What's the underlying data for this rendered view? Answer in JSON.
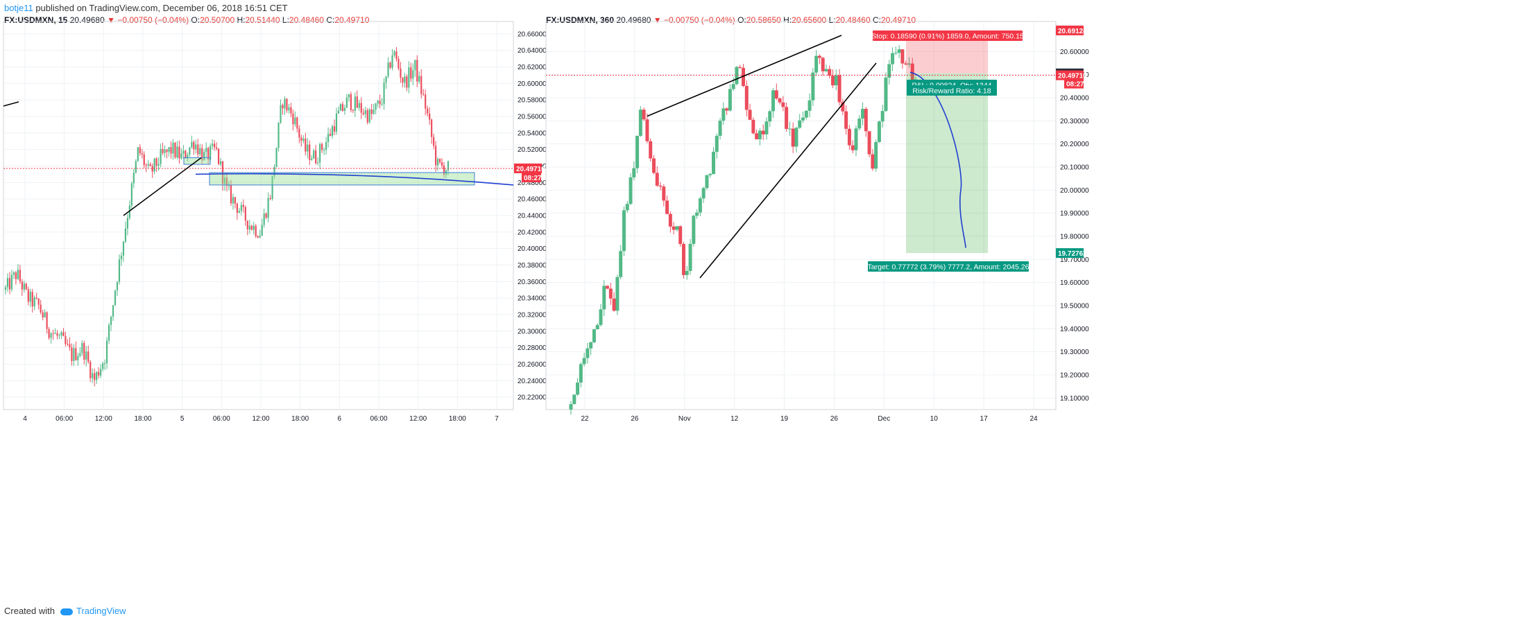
{
  "header": {
    "user": "botje11",
    "published": "published on TradingView.com, December 06, 2018 16:51 CET"
  },
  "footer": {
    "created_with": "Created with",
    "brand": "TradingView"
  },
  "colors": {
    "up": "#53b987",
    "down": "#eb4d5c",
    "grid": "#eef1f4",
    "accent_red": "#f23645",
    "accent_green": "#089981",
    "blue": "#1f3fd1",
    "link": "#2196f3"
  },
  "chart_data": [
    {
      "type": "candlestick",
      "symbol": "FX:USDMXN, 15",
      "ohlc": {
        "last": "20.49680",
        "change": "▼ −0.00750 (−0.04%)",
        "open_label": "O:",
        "open": "20.50700",
        "high_label": "H:",
        "high": "20.51440",
        "low_label": "L:",
        "low": "20.48460",
        "close_label": "C:",
        "close": "20.49710"
      },
      "ylim": [
        20.205,
        20.675
      ],
      "y_ticks": [
        "20.22000",
        "20.24000",
        "20.26000",
        "20.28000",
        "20.30000",
        "20.32000",
        "20.34000",
        "20.36000",
        "20.38000",
        "20.40000",
        "20.42000",
        "20.44000",
        "20.46000",
        "20.48000",
        "20.50000",
        "20.52000",
        "20.54000",
        "20.56000",
        "20.58000",
        "20.60000",
        "20.62000",
        "20.64000",
        "20.66000"
      ],
      "x_ticks": [
        "4",
        "06:00",
        "12:00",
        "18:00",
        "5",
        "06:00",
        "12:00",
        "18:00",
        "6",
        "06:00",
        "12:00",
        "18:00",
        "7"
      ],
      "last_price_label": "20.49710",
      "countdown": "08:27",
      "price_path": [
        20.35,
        20.37,
        20.34,
        20.33,
        20.3,
        20.29,
        20.27,
        20.28,
        20.24,
        20.27,
        20.36,
        20.44,
        20.52,
        20.49,
        20.51,
        20.52,
        20.51,
        20.53,
        20.51,
        20.52,
        20.47,
        20.45,
        20.43,
        20.42,
        20.47,
        20.58,
        20.56,
        20.52,
        20.51,
        20.53,
        20.56,
        20.58,
        20.57,
        20.56,
        20.58,
        20.64,
        20.6,
        20.62,
        20.57,
        20.5,
        20.497
      ],
      "drawings": {
        "trendline": {
          "x": [
            "14:00 Dec 4",
            "02:30 Dec 5"
          ],
          "y": [
            20.44,
            20.51
          ]
        },
        "support_zone": {
          "y": [
            20.477,
            20.492
          ]
        },
        "curve": {
          "y_start": 20.49,
          "y_end": 20.477
        }
      }
    },
    {
      "type": "candlestick",
      "symbol": "FX:USDMXN, 360",
      "ohlc": {
        "last": "20.49680",
        "change": "▼ −0.00750 (−0.04%)",
        "open_label": "O:",
        "open": "20.58650",
        "high_label": "H:",
        "high": "20.65600",
        "low_label": "L:",
        "low": "20.48460",
        "close_label": "C:",
        "close": "20.49710"
      },
      "ylim": [
        19.05,
        20.73
      ],
      "y_ticks": [
        "19.10000",
        "19.20000",
        "19.30000",
        "19.40000",
        "19.50000",
        "19.60000",
        "19.70000",
        "19.80000",
        "19.90000",
        "20.00000",
        "20.10000",
        "20.20000",
        "20.30000",
        "20.40000",
        "20.50000",
        "20.60000"
      ],
      "x_ticks": [
        "22",
        "26",
        "Nov",
        "12",
        "19",
        "26",
        "Dec",
        "10",
        "17",
        "24"
      ],
      "price_labels": {
        "stop": "20.69124",
        "entry": "20.50534",
        "last": "20.49710",
        "countdown": "08:27",
        "target": "19.72762"
      },
      "price_path": [
        19.05,
        19.2,
        19.35,
        19.45,
        19.6,
        19.5,
        19.9,
        20.1,
        20.35,
        20.1,
        20.0,
        19.88,
        19.82,
        19.58,
        19.9,
        20.0,
        20.12,
        20.3,
        20.42,
        20.55,
        20.35,
        20.2,
        20.3,
        20.45,
        20.35,
        20.2,
        20.3,
        20.42,
        20.63,
        20.47,
        20.5,
        20.25,
        20.2,
        20.35,
        20.05,
        20.3,
        20.55,
        20.6,
        20.53,
        20.5
      ],
      "position": {
        "stop_box": "Stop: 0.18590 (0.91%) 1859.0, Amount: 750.15",
        "pnl_box": "P&L: 0.00824, Qty: 1344",
        "rr_box": "Risk/Reward Ratio: 4.18",
        "target_box": "Target: 0.77772 (3.79%) 7777.2, Amount: 2045.26",
        "entry": 20.50534,
        "stop": 20.69124,
        "target": 19.72762
      },
      "drawings": {
        "upper_line": {
          "y": [
            20.32,
            20.67
          ]
        },
        "lower_line": {
          "y": [
            19.62,
            20.55
          ]
        },
        "projection_curve": {
          "y_start": 20.51,
          "y_end": 19.75
        }
      }
    }
  ]
}
